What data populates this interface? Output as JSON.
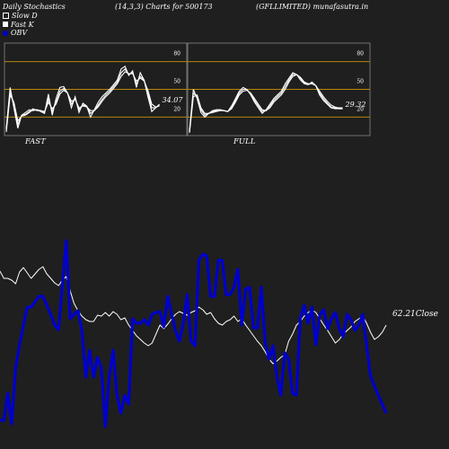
{
  "header": {
    "left": "Daily Stochastics",
    "center": "(14,3,3) Charts for 500173",
    "right": "(GFLLIMITED) munafasutra.in"
  },
  "legend": {
    "slow_d": "Slow  D",
    "fast_k": "Fast K",
    "obv": "OBV"
  },
  "colors": {
    "background": "#1f1f1f",
    "panel_border": "#888888",
    "guide_line": "#b8860b",
    "stoch_line": "#ffffff",
    "obv_line": "#0000cc",
    "close_line": "#ffffff"
  },
  "panels": {
    "fast_label": "FAST",
    "full_label": "FULL",
    "fast_value": "34.07",
    "full_value": "29.32",
    "ticks": [
      "80",
      "50",
      "20"
    ]
  },
  "close_label": "62.21Close",
  "watermark": "",
  "chart_data": [
    {
      "type": "line",
      "title": "FAST",
      "ylim": [
        0,
        100
      ],
      "guide_levels": [
        80,
        50,
        20
      ],
      "series": [
        {
          "values": [
            8,
            52,
            30,
            8,
            22,
            25,
            28,
            27,
            28,
            26,
            24,
            45,
            22,
            40,
            52,
            53,
            46,
            30,
            42,
            25,
            35,
            32,
            20,
            28,
            36,
            42,
            46,
            50,
            55,
            60,
            72,
            75,
            65,
            70,
            52,
            68,
            60,
            42,
            26,
            30,
            34
          ]
        },
        {
          "values": [
            6,
            48,
            34,
            12,
            22,
            23,
            26,
            29,
            27,
            27,
            25,
            40,
            26,
            36,
            48,
            51,
            46,
            34,
            40,
            28,
            33,
            32,
            24,
            27,
            33,
            39,
            44,
            48,
            53,
            58,
            68,
            72,
            66,
            68,
            56,
            64,
            60,
            46,
            30,
            30,
            33
          ]
        },
        {
          "values": [
            4,
            44,
            36,
            16,
            21,
            22,
            25,
            28,
            28,
            27,
            26,
            36,
            29,
            34,
            45,
            49,
            46,
            37,
            39,
            30,
            32,
            31,
            27,
            27,
            31,
            37,
            42,
            46,
            51,
            56,
            64,
            69,
            67,
            67,
            59,
            62,
            59,
            49,
            34,
            31,
            32
          ]
        }
      ]
    },
    {
      "type": "line",
      "title": "FULL",
      "ylim": [
        0,
        100
      ],
      "guide_levels": [
        80,
        50,
        20
      ],
      "series": [
        {
          "values": [
            5,
            50,
            40,
            25,
            20,
            24,
            27,
            28,
            28,
            27,
            26,
            32,
            40,
            48,
            52,
            50,
            44,
            36,
            30,
            24,
            28,
            34,
            40,
            44,
            48,
            56,
            62,
            68,
            66,
            60,
            56,
            55,
            58,
            54,
            44,
            38,
            34,
            30,
            29,
            29,
            29
          ]
        },
        {
          "values": [
            4,
            46,
            42,
            28,
            22,
            24,
            26,
            27,
            28,
            27,
            26,
            30,
            38,
            46,
            50,
            50,
            45,
            38,
            32,
            26,
            27,
            32,
            38,
            42,
            46,
            53,
            60,
            66,
            66,
            62,
            57,
            55,
            57,
            54,
            46,
            40,
            35,
            31,
            30,
            29,
            29
          ]
        },
        {
          "values": [
            3,
            42,
            44,
            30,
            24,
            24,
            25,
            26,
            27,
            27,
            26,
            29,
            36,
            44,
            48,
            49,
            46,
            40,
            34,
            28,
            27,
            30,
            36,
            40,
            44,
            50,
            58,
            64,
            66,
            63,
            58,
            56,
            56,
            54,
            48,
            42,
            37,
            33,
            31,
            30,
            30
          ]
        }
      ]
    },
    {
      "type": "line",
      "title": "",
      "series": [
        {
          "name": "OBV",
          "values": [
            468,
            468,
            438,
            472,
            410,
            385,
            362,
            342,
            342,
            336,
            330,
            330,
            340,
            350,
            362,
            367,
            318,
            268,
            355,
            350,
            346,
            368,
            420,
            390,
            420,
            398,
            410,
            475,
            420,
            390,
            440,
            460,
            440,
            450,
            355,
            360,
            360,
            356,
            362,
            350,
            348,
            347,
            364,
            330,
            350,
            368,
            380,
            360,
            328,
            380,
            385,
            290,
            283,
            285,
            330,
            330,
            290,
            290,
            328,
            328,
            320,
            300,
            362,
            322,
            320,
            365,
            365,
            320,
            382,
            400,
            385,
            420,
            440,
            393,
            400,
            438,
            440,
            355,
            340,
            360,
            342,
            384,
            350,
            345,
            366,
            355,
            348,
            366,
            375,
            350,
            356,
            368,
            362,
            350,
            385,
            418,
            430,
            440,
            450,
            460
          ]
        }
      ]
    },
    {
      "type": "line",
      "title": "",
      "series": [
        {
          "name": "Close",
          "values": [
            302,
            310,
            310,
            312,
            316,
            303,
            298,
            304,
            310,
            305,
            300,
            297,
            305,
            310,
            315,
            318,
            312,
            308,
            324,
            338,
            346,
            352,
            356,
            358,
            358,
            351,
            352,
            348,
            352,
            347,
            350,
            356,
            354,
            362,
            368,
            374,
            378,
            382,
            385,
            382,
            372,
            362,
            366,
            361,
            355,
            350,
            347,
            349,
            351,
            348,
            346,
            342,
            345,
            350,
            348,
            355,
            360,
            362,
            358,
            356,
            352,
            358,
            355,
            362,
            368,
            374,
            380,
            385,
            392,
            400,
            405,
            402,
            398,
            395,
            380,
            372,
            362,
            358,
            352,
            348,
            345,
            348,
            355,
            362,
            368,
            375,
            382,
            378,
            372,
            368,
            364,
            358,
            355,
            352,
            360,
            370,
            378,
            375,
            370,
            362
          ]
        }
      ]
    }
  ]
}
